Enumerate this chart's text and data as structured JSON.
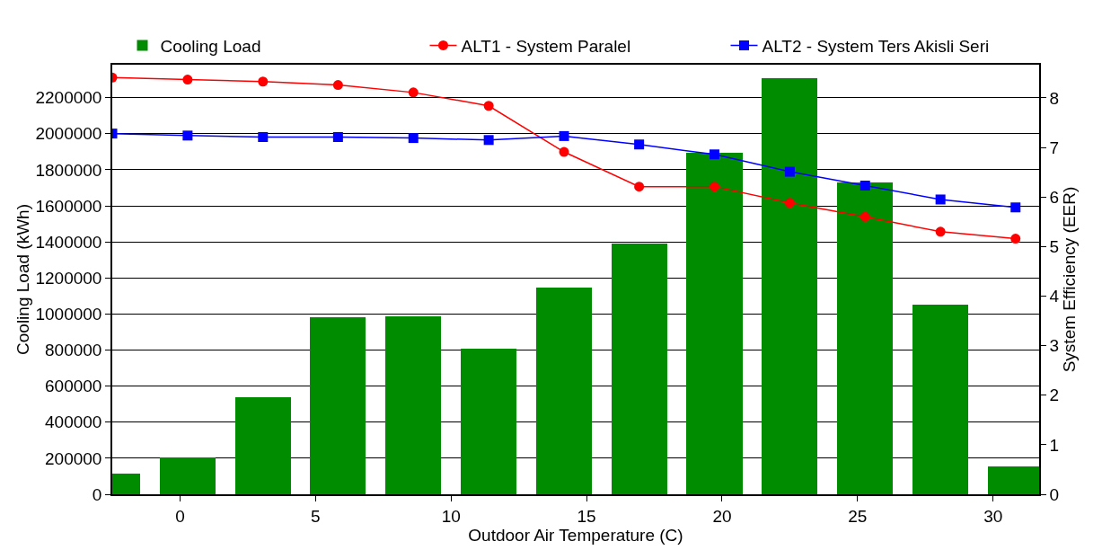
{
  "chart_data": {
    "type": "bar",
    "xlabel": "Outdoor Air Temperature (C)",
    "ylabel": "Cooling Load (kWh)",
    "y2label": "System Efficiency (EER)",
    "x": [
      -2.5,
      0.28,
      3.06,
      5.83,
      8.61,
      11.39,
      14.17,
      16.94,
      19.72,
      22.5,
      25.28,
      28.06,
      30.83
    ],
    "series": [
      {
        "name": "Cooling Load",
        "color": "#008c00",
        "values": [
          115000,
          205000,
          538000,
          980000,
          985000,
          807000,
          1147000,
          1391000,
          1893000,
          2310000,
          1731000,
          1050000,
          157000
        ]
      },
      {
        "name": "ALT1 - System Paralel",
        "color": "#ff0000",
        "type": "line",
        "axis": "y2",
        "marker": "circle",
        "values": [
          8.41,
          8.37,
          8.33,
          8.26,
          8.11,
          7.84,
          6.91,
          6.21,
          6.21,
          5.88,
          5.6,
          5.3,
          5.16
        ]
      },
      {
        "name": "ALT2 - System Ters Akisli Seri",
        "color": "#0000ff",
        "type": "line",
        "axis": "y2",
        "marker": "square",
        "values": [
          7.28,
          7.24,
          7.21,
          7.21,
          7.19,
          7.15,
          7.23,
          7.06,
          6.86,
          6.51,
          6.23,
          5.95,
          5.79
        ]
      }
    ],
    "xlim": [
      -2.5,
      31.7
    ],
    "xticks": [
      0,
      5,
      10,
      15,
      20,
      25,
      30
    ],
    "ylim": [
      0,
      2383000
    ],
    "yticks": [
      0,
      200000,
      400000,
      600000,
      800000,
      1000000,
      1200000,
      1400000,
      1600000,
      1800000,
      2000000,
      2200000
    ],
    "y2lim": [
      0,
      8.67
    ],
    "y2ticks": [
      0,
      1,
      2,
      3,
      4,
      5,
      6,
      7,
      8
    ],
    "grid": "y",
    "legend": "top"
  }
}
